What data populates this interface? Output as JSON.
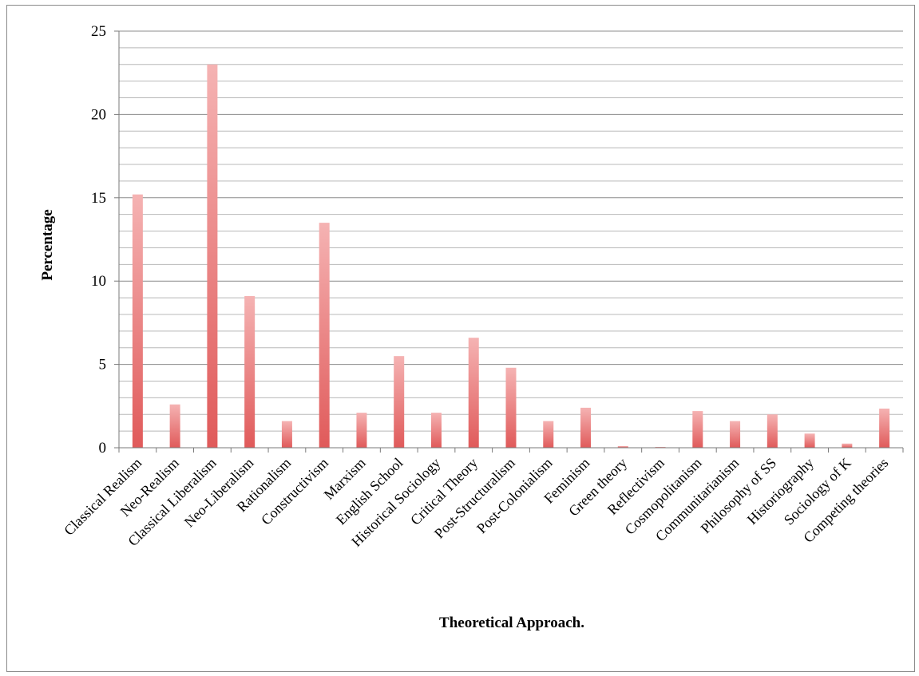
{
  "chart_data": {
    "type": "bar",
    "title": "",
    "xlabel": "Theoretical Approach.",
    "ylabel": "Percentage",
    "ylim": [
      0,
      25
    ],
    "yticks": [
      0,
      5,
      10,
      15,
      20,
      25
    ],
    "minor_gridlines_every": 1,
    "grid": true,
    "legend": "none",
    "bar_color": "#e05a5a",
    "bar_color_light": "#f5b3b3",
    "categories": [
      "Classical Realism",
      "Neo-Realism",
      "Classical Liberalism",
      "Neo-Liberalism",
      "Rationalism",
      "Constructivism",
      "Marxism",
      "English School",
      "Historical Sociology",
      "Critical Theory",
      "Post-Structuralism",
      "Post-Colonialism",
      "Feminism",
      "Green theory",
      "Reflectivism",
      "Cosmopolitanism",
      "Communitarianism",
      "Philosophy of SS",
      "Historiography",
      "Sociology of K",
      "Competing theories"
    ],
    "values": [
      15.2,
      2.6,
      23.0,
      9.1,
      1.6,
      13.5,
      2.1,
      5.5,
      2.1,
      6.6,
      4.8,
      1.6,
      2.4,
      0.1,
      0.05,
      2.2,
      1.6,
      2.0,
      0.85,
      0.25,
      2.35
    ]
  }
}
